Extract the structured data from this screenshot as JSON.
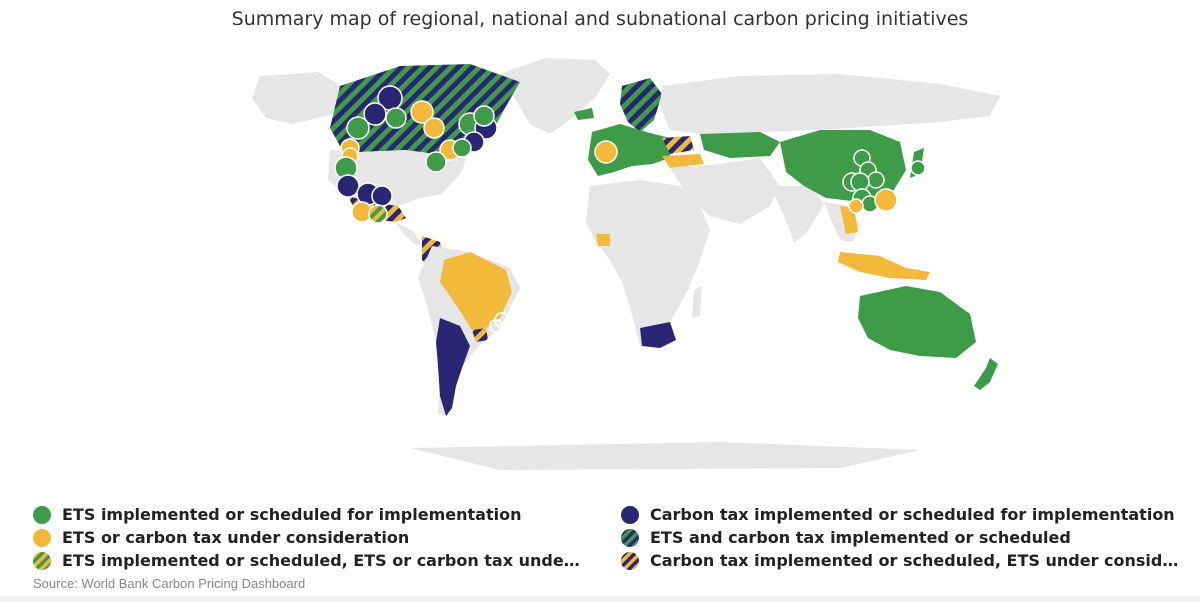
{
  "title": "Summary map of regional, national and subnational carbon pricing initiatives",
  "source": "Source: World Bank Carbon Pricing Dashboard",
  "colors": {
    "ets": "#3e9b48",
    "consideration": "#f2b93b",
    "tax": "#2a2673",
    "land": "#e6e6e6",
    "circle_stroke": "#ffffff"
  },
  "legend": [
    {
      "key": "ets",
      "label": "ETS implemented or scheduled for implementation"
    },
    {
      "key": "tax",
      "label": "Carbon tax implemented or scheduled for implementation"
    },
    {
      "key": "consideration",
      "label": "ETS or carbon tax under consideration"
    },
    {
      "key": "ets_tax",
      "label": "ETS and carbon tax implemented or scheduled"
    },
    {
      "key": "ets_consideration",
      "label": "ETS implemented or scheduled, ETS or carbon tax under c..."
    },
    {
      "key": "tax_ets_consideration",
      "label": "Carbon tax implemented or scheduled, ETS under consider..."
    }
  ],
  "map": {
    "countries_ets": [
      "China",
      "Australia",
      "European Union",
      "Kazakhstan",
      "New Zealand",
      "Japan",
      "South Korea"
    ],
    "countries_tax": [
      "South Africa",
      "Argentina",
      "Chile",
      "Mexico"
    ],
    "countries_consideration": [
      "Brazil",
      "Turkey",
      "Indonesia",
      "Thailand",
      "Vietnam",
      "Côte d'Ivoire",
      "Senegal",
      "Papua New Guinea"
    ],
    "countries_ets_tax": [
      "Canada",
      "Sweden",
      "Norway",
      "Finland"
    ],
    "countries_tax_ets_consideration": [
      "Colombia",
      "Ukraine",
      "Uruguay"
    ],
    "subnational_markers": {
      "ets": [
        "British Columbia",
        "Washington",
        "California",
        "Quebec",
        "Nova Scotia",
        "New Brunswick",
        "RGGI",
        "Massachusetts",
        "Beijing",
        "Tianjin",
        "Shanghai",
        "Hubei",
        "Chongqing",
        "Guangdong",
        "Shenzhen",
        "Fujian",
        "Tokyo",
        "Saitama"
      ],
      "tax": [
        "Alberta",
        "Northwest Territories",
        "Newfoundland",
        "Prince Edward Island",
        "Baja California",
        "Zacatecas",
        "Tamaulipas",
        "Mexico State"
      ],
      "consideration": [
        "Oregon",
        "Manitoba",
        "Ontario",
        "Pennsylvania",
        "Virginia",
        "Catalonia",
        "Taiwan",
        "Rio de Janeiro",
        "São Paulo",
        "Jalisco"
      ]
    }
  }
}
